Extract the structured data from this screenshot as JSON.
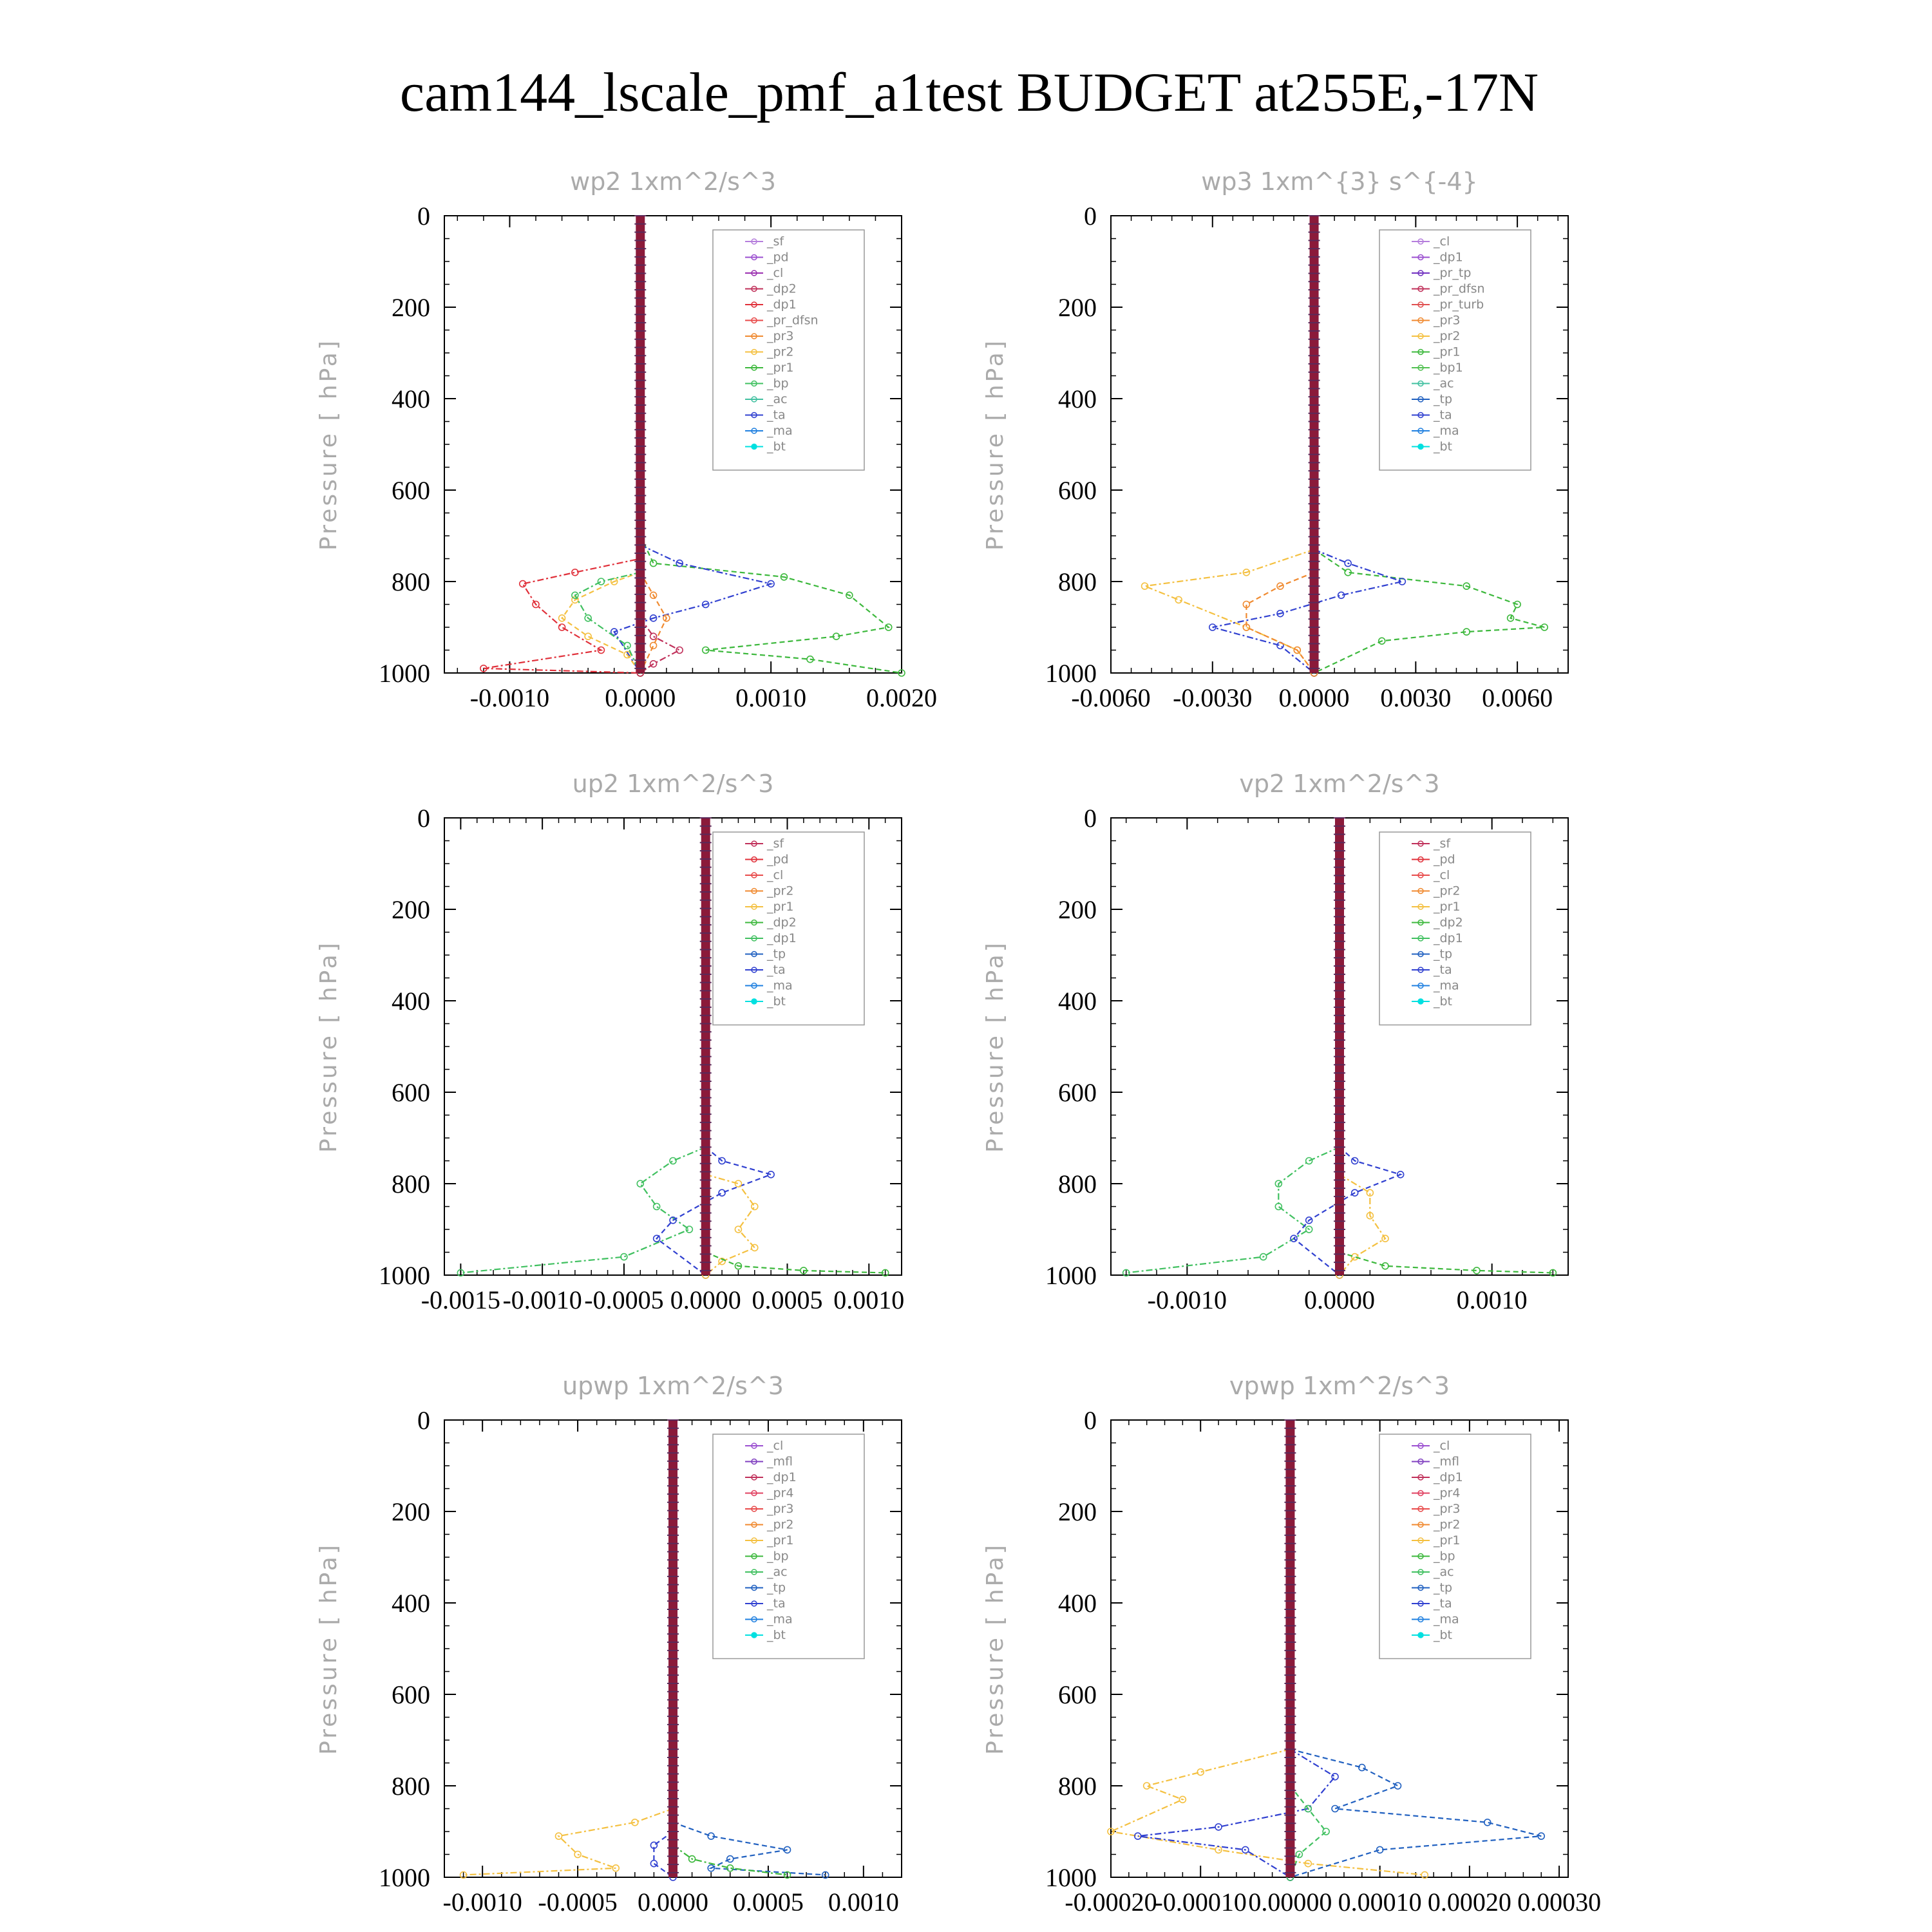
{
  "title": "cam144_lscale_pmf_a1test  BUDGET at255E,-17N",
  "colors": {
    "sf": "#b57edc",
    "pd": "#9b4fd0",
    "cl": "#9b30b0",
    "dp2": "#c0305a",
    "dp1": "#e0303a",
    "pr_dfsn": "#e84a4a",
    "pr3": "#f08a30",
    "pr2": "#f4c040",
    "pr1": "#3cb83c",
    "bp": "#40c060",
    "ac": "#40c0a0",
    "ta": "#3040d0",
    "ma": "#2080e0",
    "bt": "#00e0e0",
    "tp": "#2060c0",
    "pr4": "#e04060",
    "mfl": "#8040c0",
    "pr_tp": "#7030c0",
    "pr_turb": "#e05050",
    "bp1": "#50c050"
  },
  "chart_data": [
    {
      "type": "line",
      "title": "wp2   1xm^2/s^3",
      "ylabel": "Pressure [ hPa]",
      "xlim": [
        -0.0015,
        0.002
      ],
      "ylim": [
        1000,
        0
      ],
      "xticks": [
        "-0.0010",
        "0.0000",
        "0.0010",
        "0.0020"
      ],
      "xtick_values": [
        -0.001,
        0,
        0.001,
        0.002
      ],
      "yticks": [
        "0",
        "200",
        "400",
        "600",
        "800",
        "1000"
      ],
      "legend": [
        "_sf",
        "_pd",
        "_cl",
        "_dp2",
        "_dp1",
        "_pr_dfsn",
        "_pr3",
        "_pr2",
        "_pr1",
        "_bp",
        "_ac",
        "_ta",
        "_ma",
        "_bt"
      ],
      "legend_keys": [
        "sf",
        "pd",
        "cl",
        "dp2",
        "dp1",
        "pr_dfsn",
        "pr3",
        "pr2",
        "pr1",
        "bp",
        "ac",
        "ta",
        "ma",
        "bt"
      ],
      "legend_pos": "top-right",
      "series": [
        {
          "key": "dp1",
          "x": [
            0,
            0,
            -0.0005,
            -0.0009,
            -0.0008,
            -0.0006,
            -0.0003,
            -0.0012,
            0
          ],
          "y": [
            700,
            750,
            780,
            805,
            850,
            900,
            950,
            990,
            1000
          ]
        },
        {
          "key": "pr1",
          "x": [
            0,
            0.0001,
            0.0011,
            0.0016,
            0.0019,
            0.0015,
            0.0005,
            0.0013,
            0.002
          ],
          "y": [
            700,
            760,
            790,
            830,
            900,
            920,
            950,
            970,
            1000
          ]
        },
        {
          "key": "ta",
          "x": [
            0,
            0.0003,
            0.001,
            0.0005,
            0.0001,
            -0.0002,
            0
          ],
          "y": [
            720,
            760,
            805,
            850,
            880,
            910,
            1000
          ]
        },
        {
          "key": "pr2",
          "x": [
            0,
            -0.0002,
            -0.0005,
            -0.0006,
            -0.0004,
            -0.0001,
            0
          ],
          "y": [
            780,
            800,
            840,
            880,
            920,
            960,
            1000
          ]
        },
        {
          "key": "bp",
          "x": [
            0,
            -0.0003,
            -0.0005,
            -0.0004,
            -0.0001,
            0
          ],
          "y": [
            780,
            800,
            830,
            880,
            940,
            1000
          ]
        },
        {
          "key": "pr3",
          "x": [
            0,
            0.0001,
            0.0002,
            0.0001,
            0
          ],
          "y": [
            780,
            830,
            880,
            940,
            1000
          ]
        },
        {
          "key": "dp2",
          "x": [
            0,
            0.0001,
            0.0003,
            0.0001,
            0
          ],
          "y": [
            880,
            920,
            950,
            980,
            1000
          ]
        }
      ]
    },
    {
      "type": "line",
      "title": "wp3   1xm^{3} s^{-4}",
      "ylabel": "Pressure [ hPa]",
      "xlim": [
        -0.006,
        0.0075
      ],
      "ylim": [
        1000,
        0
      ],
      "xticks": [
        "-0.0060",
        "-0.0030",
        "0.0000",
        "0.0030",
        "0.0060"
      ],
      "xtick_values": [
        -0.006,
        -0.003,
        0,
        0.003,
        0.006
      ],
      "yticks": [
        "0",
        "200",
        "400",
        "600",
        "800",
        "1000"
      ],
      "legend": [
        "_cl",
        "_dp1",
        "_pr_tp",
        "_pr_dfsn",
        "_pr_turb",
        "_pr3",
        "_pr2",
        "_pr1",
        "_bp1",
        "_ac",
        "_tp",
        "_ta",
        "_ma",
        "_bt"
      ],
      "legend_keys": [
        "sf",
        "pd",
        "pr_tp",
        "dp2",
        "pr_turb",
        "pr3",
        "pr2",
        "pr1",
        "bp1",
        "ac",
        "tp",
        "ta",
        "ma",
        "bt"
      ],
      "legend_pos": "top-right",
      "series": [
        {
          "key": "pr2",
          "x": [
            0,
            -0.002,
            -0.005,
            -0.004,
            -0.002,
            -0.0005,
            0
          ],
          "y": [
            730,
            780,
            810,
            840,
            900,
            950,
            1000
          ]
        },
        {
          "key": "pr1",
          "x": [
            0,
            0.001,
            0.0045,
            0.006,
            0.0058,
            0.0068,
            0.0045,
            0.002,
            0
          ],
          "y": [
            730,
            780,
            810,
            850,
            880,
            900,
            910,
            930,
            1000
          ]
        },
        {
          "key": "ta",
          "x": [
            0,
            0.001,
            0.0026,
            0.0008,
            -0.001,
            -0.003,
            -0.001,
            0
          ],
          "y": [
            730,
            760,
            800,
            830,
            870,
            900,
            940,
            1000
          ]
        },
        {
          "key": "pr3",
          "x": [
            0,
            -0.001,
            -0.002,
            -0.002,
            -0.0005,
            0
          ],
          "y": [
            780,
            810,
            850,
            900,
            950,
            1000
          ]
        }
      ]
    },
    {
      "type": "line",
      "title": "up2   1xm^2/s^3",
      "ylabel": "Pressure [ hPa]",
      "xlim": [
        -0.0016,
        0.0012
      ],
      "ylim": [
        1000,
        0
      ],
      "xticks": [
        "-0.0015",
        "-0.0010",
        "-0.0005",
        "0.0000",
        "0.0005",
        "0.0010"
      ],
      "xtick_values": [
        -0.0015,
        -0.001,
        -0.0005,
        0,
        0.0005,
        0.001
      ],
      "yticks": [
        "0",
        "200",
        "400",
        "600",
        "800",
        "1000"
      ],
      "legend": [
        "_sf",
        "_pd",
        "_cl",
        "_pr2",
        "_pr1",
        "_dp2",
        "_dp1",
        "_tp",
        "_ta",
        "_ma",
        "_bt"
      ],
      "legend_keys": [
        "dp2",
        "dp1",
        "pr_dfsn",
        "pr3",
        "pr2",
        "pr1",
        "bp",
        "tp",
        "ta",
        "ma",
        "bt"
      ],
      "legend_pos": "top-right",
      "series": [
        {
          "key": "bp",
          "x": [
            0,
            -0.0002,
            -0.0004,
            -0.0003,
            -0.0001,
            -0.0005,
            -0.0015
          ],
          "y": [
            720,
            750,
            800,
            850,
            900,
            960,
            995
          ]
        },
        {
          "key": "ta",
          "x": [
            0,
            0.0001,
            0.0004,
            0.0001,
            -0.0002,
            -0.0003,
            0
          ],
          "y": [
            720,
            750,
            780,
            820,
            880,
            920,
            1000
          ]
        },
        {
          "key": "pr2",
          "x": [
            0,
            0.0002,
            0.0003,
            0.0002,
            0.0003,
            0.0001,
            0
          ],
          "y": [
            780,
            800,
            850,
            900,
            940,
            970,
            1000
          ]
        },
        {
          "key": "pr1",
          "x": [
            0,
            0.0002,
            0.0006,
            0.0011
          ],
          "y": [
            950,
            980,
            990,
            995
          ]
        }
      ]
    },
    {
      "type": "line",
      "title": "vp2   1xm^2/s^3",
      "ylabel": "Pressure [ hPa]",
      "xlim": [
        -0.0015,
        0.0015
      ],
      "ylim": [
        1000,
        0
      ],
      "xticks": [
        "-0.0010",
        "0.0000",
        "0.0010"
      ],
      "xtick_values": [
        -0.001,
        0,
        0.001
      ],
      "yticks": [
        "0",
        "200",
        "400",
        "600",
        "800",
        "1000"
      ],
      "legend": [
        "_sf",
        "_pd",
        "_cl",
        "_pr2",
        "_pr1",
        "_dp2",
        "_dp1",
        "_tp",
        "_ta",
        "_ma",
        "_bt"
      ],
      "legend_keys": [
        "dp2",
        "dp1",
        "pr_dfsn",
        "pr3",
        "pr2",
        "pr1",
        "bp",
        "tp",
        "ta",
        "ma",
        "bt"
      ],
      "legend_pos": "top-right",
      "series": [
        {
          "key": "bp",
          "x": [
            0,
            -0.0002,
            -0.0004,
            -0.0004,
            -0.0002,
            -0.0005,
            -0.0014
          ],
          "y": [
            720,
            750,
            800,
            850,
            900,
            960,
            995
          ]
        },
        {
          "key": "ta",
          "x": [
            0,
            0.0001,
            0.0004,
            0.0001,
            -0.0002,
            -0.0003,
            0
          ],
          "y": [
            720,
            750,
            780,
            820,
            880,
            920,
            1000
          ]
        },
        {
          "key": "pr2",
          "x": [
            0,
            0.0002,
            0.0002,
            0.0003,
            0.0001,
            0
          ],
          "y": [
            780,
            820,
            870,
            920,
            960,
            1000
          ]
        },
        {
          "key": "pr1",
          "x": [
            0,
            0.0003,
            0.0009,
            0.0014
          ],
          "y": [
            950,
            980,
            990,
            995
          ]
        }
      ]
    },
    {
      "type": "line",
      "title": "upwp   1xm^2/s^3",
      "ylabel": "Pressure [ hPa]",
      "xlim": [
        -0.0012,
        0.0012
      ],
      "ylim": [
        1000,
        0
      ],
      "xticks": [
        "-0.0010",
        "-0.0005",
        "0.0000",
        "0.0005",
        "0.0010"
      ],
      "xtick_values": [
        -0.001,
        -0.0005,
        0,
        0.0005,
        0.001
      ],
      "yticks": [
        "0",
        "200",
        "400",
        "600",
        "800",
        "1000"
      ],
      "legend": [
        "_cl",
        "_mfl",
        "_dp1",
        "_pr4",
        "_pr3",
        "_pr2",
        "_pr1",
        "_bp",
        "_ac",
        "_tp",
        "_ta",
        "_ma",
        "_bt"
      ],
      "legend_keys": [
        "pd",
        "mfl",
        "dp2",
        "pr4",
        "pr_dfsn",
        "pr3",
        "pr2",
        "pr1",
        "bp",
        "tp",
        "ta",
        "ma",
        "bt"
      ],
      "legend_pos": "top-right",
      "series": [
        {
          "key": "pr2",
          "x": [
            0,
            -0.0002,
            -0.0006,
            -0.0005,
            -0.0003,
            -0.0011
          ],
          "y": [
            850,
            880,
            910,
            950,
            980,
            995
          ]
        },
        {
          "key": "tp",
          "x": [
            0,
            0.0002,
            0.0006,
            0.0003,
            0.0002,
            0.0008
          ],
          "y": [
            880,
            910,
            940,
            960,
            980,
            995
          ]
        },
        {
          "key": "pr1",
          "x": [
            0,
            0.0001,
            0.0003,
            0.0006
          ],
          "y": [
            930,
            960,
            980,
            995
          ]
        },
        {
          "key": "ta",
          "x": [
            0,
            -0.0001,
            -0.0001,
            0
          ],
          "y": [
            900,
            930,
            970,
            1000
          ]
        }
      ]
    },
    {
      "type": "line",
      "title": "vpwp   1xm^2/s^3",
      "ylabel": "Pressure [ hPa]",
      "xlim": [
        -0.0002,
        0.00031
      ],
      "ylim": [
        1000,
        0
      ],
      "xticks": [
        "-0.00020",
        "-0.00010",
        "0.00000",
        "0.00010",
        "0.00020",
        "0.00030"
      ],
      "xtick_values": [
        -0.0002,
        -0.0001,
        0,
        0.0001,
        0.0002,
        0.0003
      ],
      "yticks": [
        "0",
        "200",
        "400",
        "600",
        "800",
        "1000"
      ],
      "legend": [
        "_cl",
        "_mfl",
        "_dp1",
        "_pr4",
        "_pr3",
        "_pr2",
        "_pr1",
        "_bp",
        "_ac",
        "_tp",
        "_ta",
        "_ma",
        "_bt"
      ],
      "legend_keys": [
        "pd",
        "mfl",
        "dp2",
        "pr4",
        "pr_dfsn",
        "pr3",
        "pr2",
        "pr1",
        "bp",
        "tp",
        "ta",
        "ma",
        "bt"
      ],
      "legend_pos": "top-right",
      "series": [
        {
          "key": "pr2",
          "x": [
            0,
            -0.0001,
            -0.00016,
            -0.00012,
            -0.0002,
            -8e-05,
            2e-05,
            0.00015
          ],
          "y": [
            720,
            770,
            800,
            830,
            900,
            940,
            970,
            995
          ]
        },
        {
          "key": "tp",
          "x": [
            0,
            8e-05,
            0.00012,
            5e-05,
            0.00022,
            0.00028,
            0.0001,
            0
          ],
          "y": [
            720,
            760,
            800,
            850,
            880,
            910,
            940,
            1000
          ]
        },
        {
          "key": "ta",
          "x": [
            0,
            5e-05,
            2e-05,
            -8e-05,
            -0.00017,
            -5e-05,
            0
          ],
          "y": [
            720,
            780,
            850,
            890,
            910,
            940,
            1000
          ]
        },
        {
          "key": "bp",
          "x": [
            0,
            2e-05,
            4e-05,
            1e-05,
            0
          ],
          "y": [
            800,
            850,
            900,
            950,
            1000
          ]
        }
      ]
    }
  ]
}
